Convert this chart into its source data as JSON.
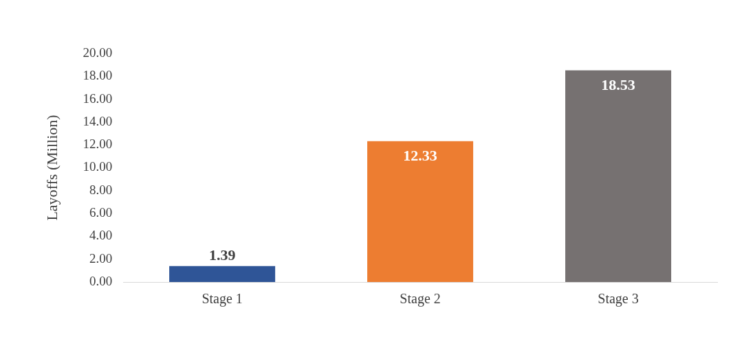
{
  "chart_data": {
    "type": "bar",
    "ylabel": "Layoffs (Million)",
    "categories": [
      "Stage 1",
      "Stage 2",
      "Stage 3"
    ],
    "values": [
      1.39,
      12.33,
      18.53
    ],
    "colors": [
      "#2f5597",
      "#ed7d31",
      "#767171"
    ],
    "ylim": [
      0,
      20
    ],
    "yticks": [
      {
        "value": 0,
        "label": "0.00"
      },
      {
        "value": 2,
        "label": "2.00"
      },
      {
        "value": 4,
        "label": "4.00"
      },
      {
        "value": 6,
        "label": "6.00"
      },
      {
        "value": 8,
        "label": "8.00"
      },
      {
        "value": 10,
        "label": "10.00"
      },
      {
        "value": 12,
        "label": "12.00"
      },
      {
        "value": 14,
        "label": "14.00"
      },
      {
        "value": 16,
        "label": "16.00"
      },
      {
        "value": 18,
        "label": "18.00"
      },
      {
        "value": 20,
        "label": "20.00"
      }
    ],
    "grid": false,
    "legend": false,
    "data_labels": true
  }
}
